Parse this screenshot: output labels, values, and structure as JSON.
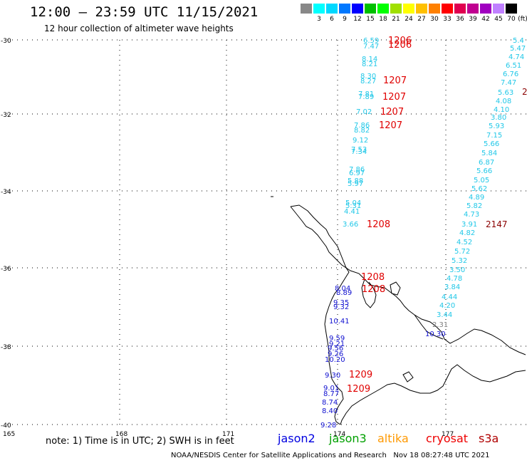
{
  "header": {
    "title": "12:00 — 23:59 UTC 11/15/2021",
    "subtitle": "12 hour collection of altimeter wave heights"
  },
  "color_scale": {
    "unit": "(ft)",
    "bins": [
      {
        "label": "",
        "color": "#888888"
      },
      {
        "label": "3",
        "color": "#00ffff"
      },
      {
        "label": "6",
        "color": "#00d8ff"
      },
      {
        "label": "9",
        "color": "#0078ff"
      },
      {
        "label": "12",
        "color": "#0000ff"
      },
      {
        "label": "15",
        "color": "#00c000"
      },
      {
        "label": "18",
        "color": "#00ff00"
      },
      {
        "label": "21",
        "color": "#a0e000"
      },
      {
        "label": "24",
        "color": "#ffff00"
      },
      {
        "label": "27",
        "color": "#ffc000"
      },
      {
        "label": "30",
        "color": "#ff8000"
      },
      {
        "label": "33",
        "color": "#ff0000"
      },
      {
        "label": "36",
        "color": "#e00050"
      },
      {
        "label": "39",
        "color": "#c00090"
      },
      {
        "label": "42",
        "color": "#a000c0"
      },
      {
        "label": "45",
        "color": "#c080ff"
      },
      {
        "label": "70",
        "color": "#000000"
      }
    ]
  },
  "axes": {
    "lat_labels": [
      "-30",
      "-32",
      "-34",
      "-36",
      "-38",
      "-40"
    ],
    "lon_labels": [
      "165",
      "168",
      "171",
      "174",
      "177"
    ]
  },
  "tracks": {
    "west_track_light": [
      "6.59",
      "7.47",
      "8.14",
      "8.21",
      "8.30",
      "8.27",
      "7.81",
      "7.89",
      "7.02",
      "7.86",
      "8.82",
      "9.12",
      "7.53",
      "7.34",
      "7.86",
      "6.97",
      "5.88",
      "5.97",
      "5.04",
      "5.31",
      "4.41",
      "3.66"
    ],
    "west_track_blue": [
      "8.04",
      "8.89",
      "9.35",
      "9.32",
      "10.41",
      "9.59",
      "9.21",
      "9.56",
      "9.26",
      "10.20",
      "9.30",
      "9.01",
      "8.77",
      "8.74",
      "8.40",
      "9.28"
    ],
    "west_time_labels": [
      "1206",
      "1206",
      "1207",
      "1207",
      "1207",
      "1207",
      "1208",
      "1208",
      "1208",
      "1209",
      "1209"
    ],
    "east_track": [
      "5.4",
      "5.47",
      "4.74",
      "6.51",
      "6.76",
      "7.47",
      "5.63",
      "4.08",
      "4.10",
      "3.80",
      "5.93",
      "7.15",
      "5.66",
      "5.84",
      "6.87",
      "5.66",
      "5.05",
      "5.62",
      "4.89",
      "5.82",
      "4.73",
      "3.91",
      "4.82",
      "4.52",
      "5.72",
      "5.32",
      "3.50",
      "4.78",
      "3.84",
      "4.44",
      "4.20",
      "3.44"
    ],
    "east_track_gray": "2.31",
    "east_track_blue": "10.30",
    "east_time_labels": [
      "2147",
      "2"
    ]
  },
  "footer": {
    "note": "note: 1) Time is in UTC; 2) SWH is in feet",
    "satellites": [
      {
        "name": "jason2",
        "color": "#0000e0"
      },
      {
        "name": "jason3",
        "color": "#00a000"
      },
      {
        "name": "altika",
        "color": "#ff9900"
      },
      {
        "name": "cryosat",
        "color": "#ee0000"
      },
      {
        "name": "s3a",
        "color": "#b00000"
      }
    ],
    "credit": "NOAA/NESDIS Center for Satellite Applications and Research   Nov 18 08:27:48 UTC 2021"
  }
}
